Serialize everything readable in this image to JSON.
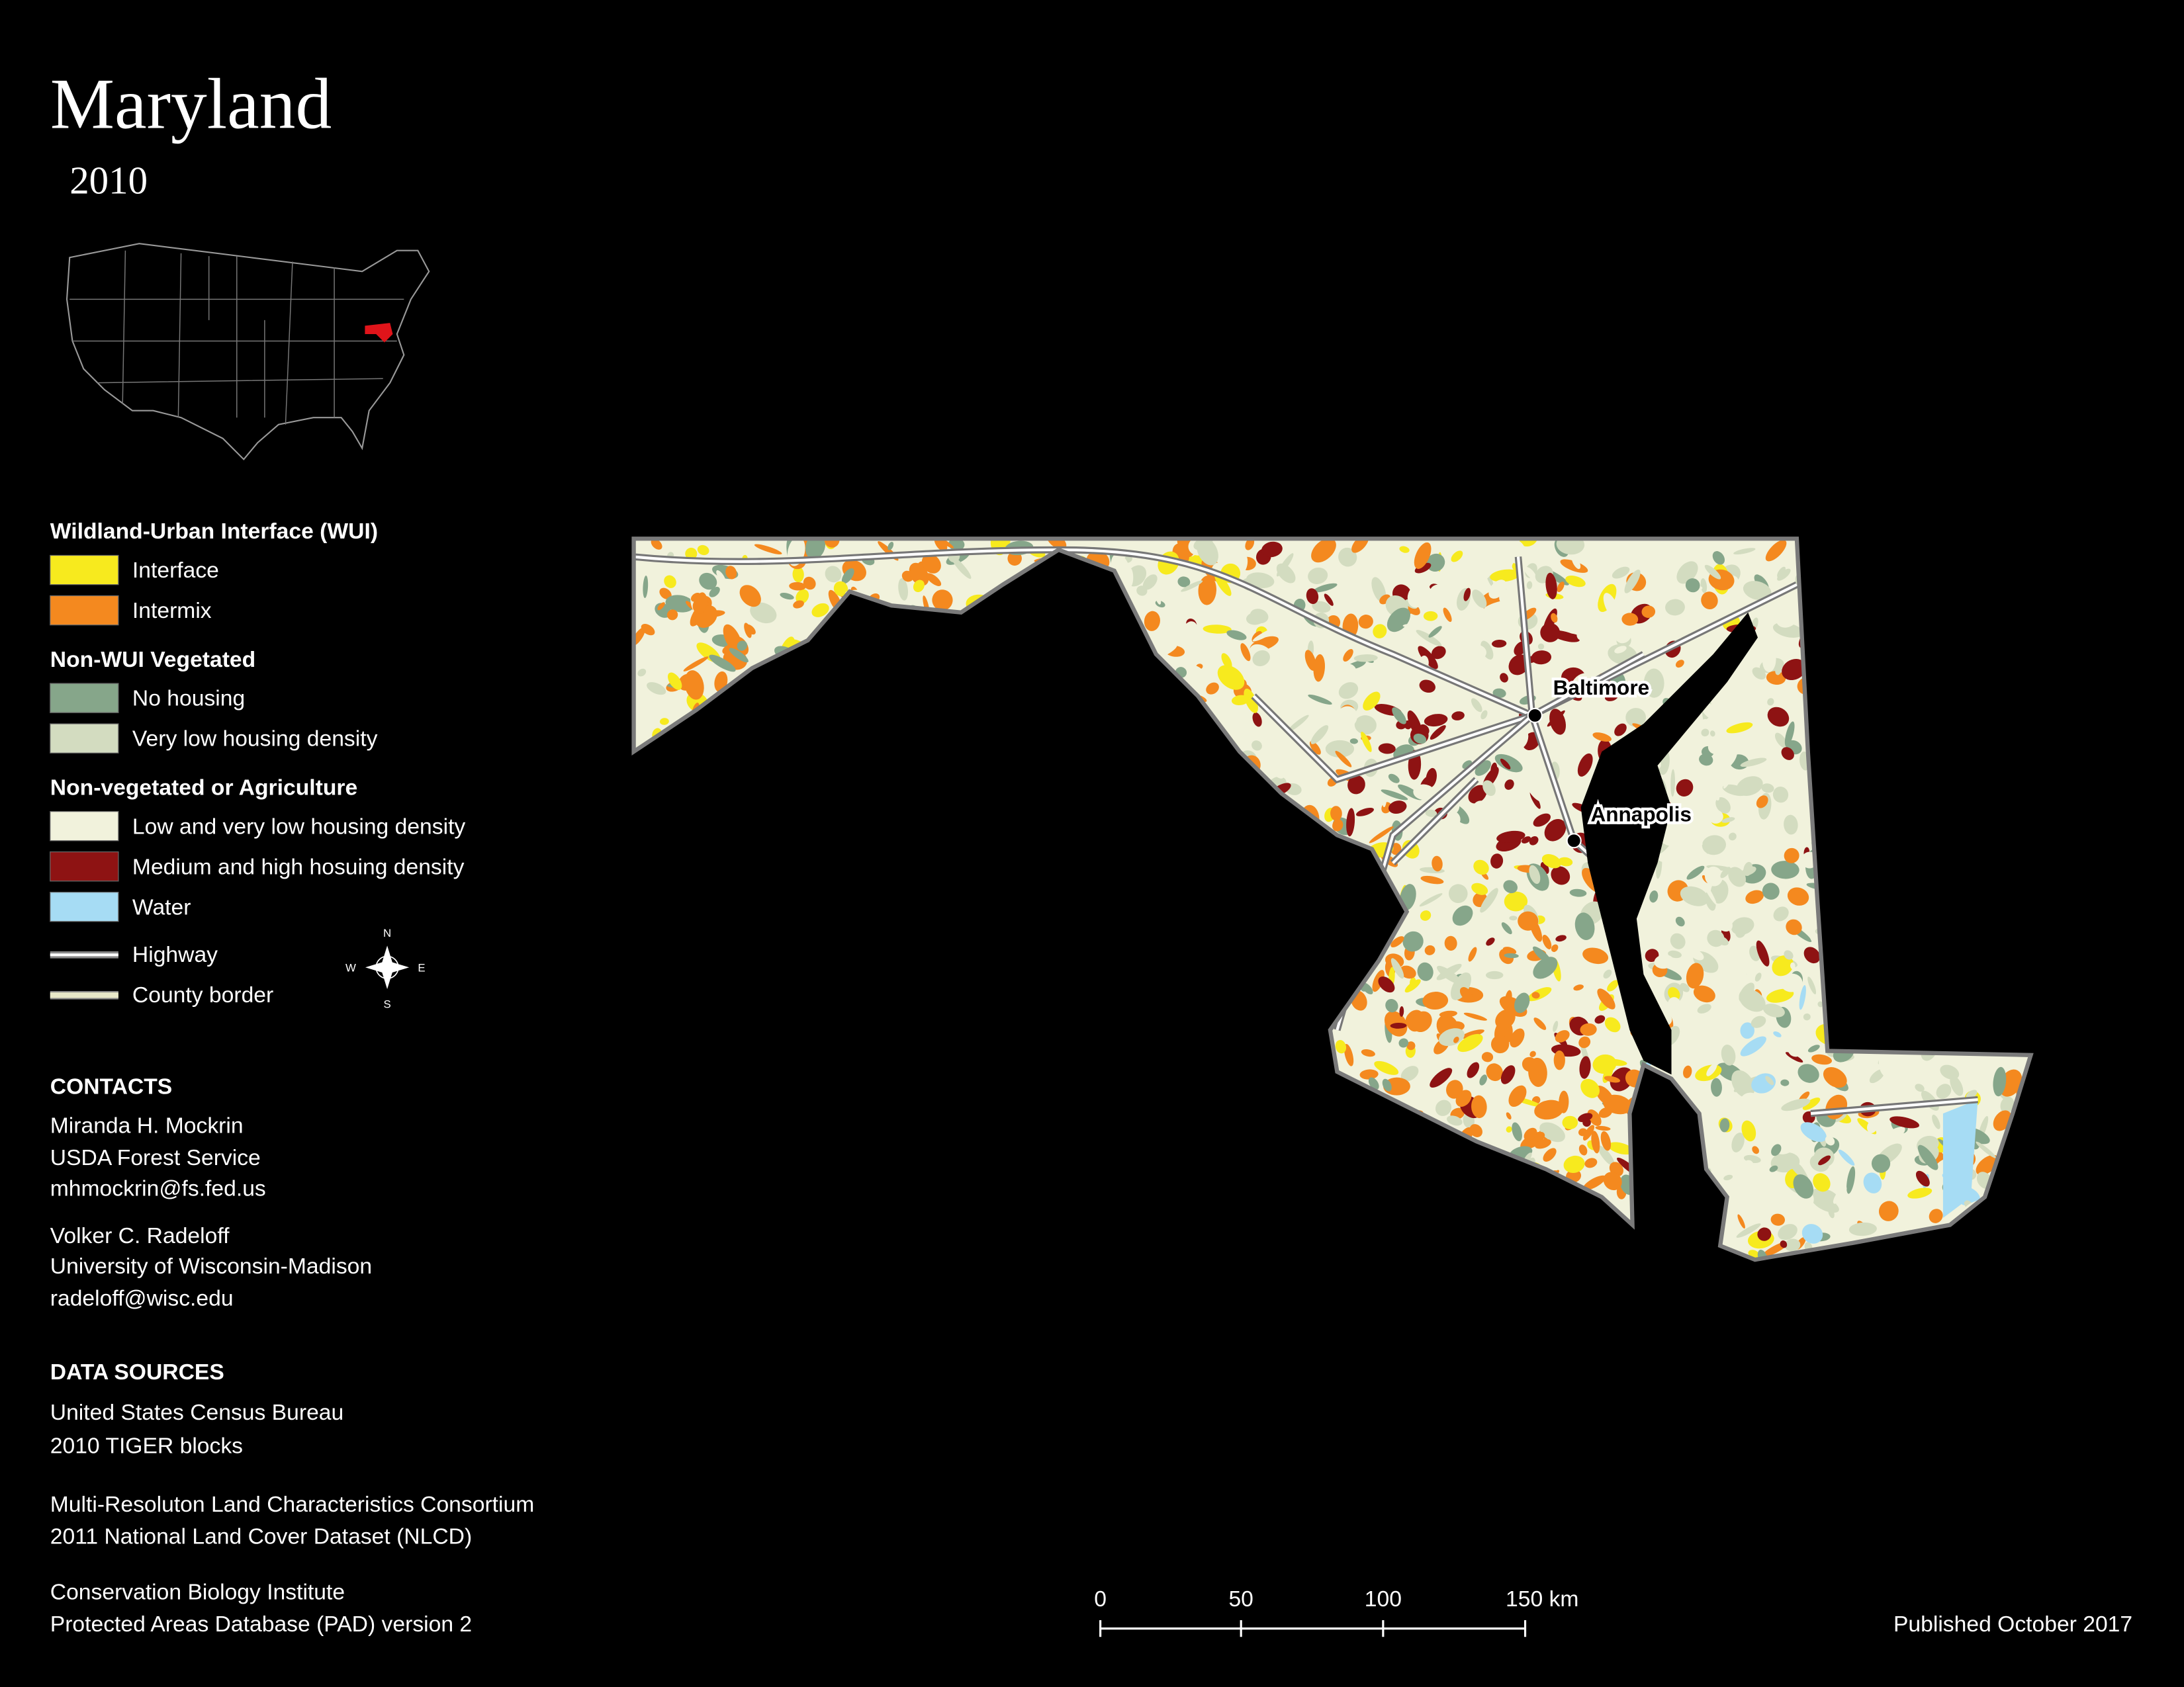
{
  "header": {
    "title": "Maryland",
    "year": "2010"
  },
  "legend": {
    "groups": [
      {
        "title": "Wildland-Urban Interface (WUI)",
        "items": [
          {
            "label": "Interface",
            "color": "#f7ea1e"
          },
          {
            "label": "Intermix",
            "color": "#f4891f"
          }
        ]
      },
      {
        "title": "Non-WUI Vegetated",
        "items": [
          {
            "label": "No housing",
            "color": "#86a68a"
          },
          {
            "label": "Very low housing density",
            "color": "#d3dcc0"
          }
        ]
      },
      {
        "title": "Non-vegetated or Agriculture",
        "items": [
          {
            "label": "Low and very low housing density",
            "color": "#f1f2dc"
          },
          {
            "label": "Medium and high hosuing density",
            "color": "#8e1313"
          },
          {
            "label": "Water",
            "color": "#a6dcf4"
          }
        ]
      }
    ],
    "lines": [
      {
        "label": "Highway"
      },
      {
        "label": "County border"
      }
    ]
  },
  "compass": {
    "n": "N",
    "e": "E",
    "s": "S",
    "w": "W"
  },
  "contacts": {
    "title": "CONTACTS",
    "people": [
      {
        "name": "Miranda H. Mockrin",
        "org": "USDA Forest Service",
        "email": "mhmockrin@fs.fed.us"
      },
      {
        "name": "Volker C. Radeloff",
        "org": "University of Wisconsin-Madison",
        "email": "radeloff@wisc.edu"
      }
    ]
  },
  "data_sources": {
    "title": "DATA SOURCES",
    "sources": [
      [
        "United States Census Bureau",
        "2010 TIGER blocks"
      ],
      [
        "Multi-Resoluton Land Characteristics Consortium",
        "2011 National Land Cover Dataset (NLCD)"
      ],
      [
        "Conservation Biology Institute",
        "Protected Areas Database (PAD) version 2"
      ]
    ]
  },
  "map": {
    "cities": [
      {
        "name": "Baltimore"
      },
      {
        "name": "Annapolis"
      }
    ]
  },
  "scale_bar": {
    "labels": [
      "0",
      "50",
      "100",
      "150 km"
    ]
  },
  "footer": {
    "published": "Published October 2017"
  }
}
